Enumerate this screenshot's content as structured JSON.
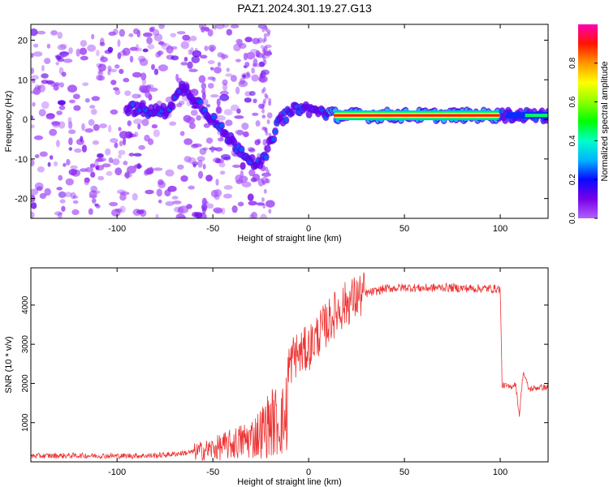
{
  "figure": {
    "title": "PAZ1.2024.301.19.27.G13"
  },
  "chart_data": [
    {
      "type": "heatmap",
      "title": "PAZ1.2024.301.19.27.G13",
      "xlabel": "Height of straight line (km)",
      "ylabel": "Frequency (Hz)",
      "xlim": [
        -145,
        125
      ],
      "ylim": [
        -25,
        24
      ],
      "xticks": [
        -100,
        -50,
        0,
        50,
        100
      ],
      "yticks": [
        -20,
        -10,
        0,
        10,
        20
      ],
      "colorbar": {
        "label": "Normalized spectral amplitude",
        "range": [
          0,
          1
        ],
        "ticks": [
          "0.0",
          "0.2",
          "0.4",
          "0.6",
          "0.8"
        ],
        "colormap": "gist_rainbow (white at 0)"
      },
      "ridge": {
        "description_points_x": [
          -95,
          -85,
          -75,
          -65,
          -55,
          -45,
          -35,
          -25,
          -15,
          -5,
          5,
          15,
          50,
          100,
          110,
          125
        ],
        "description_points_y": [
          3,
          2,
          2,
          8,
          3,
          -3,
          -8,
          -12,
          0,
          3,
          2,
          1,
          1,
          1,
          1,
          1
        ],
        "strong_segment": {
          "x_from": 10,
          "x_to": 100,
          "frequency": 1
        }
      },
      "grid": false
    },
    {
      "type": "line",
      "xlabel": "Height of straight line (km)",
      "ylabel": "SNR (10 * v/v)",
      "xlim": [
        -145,
        125
      ],
      "ylim": [
        0,
        4950
      ],
      "xticks": [
        -100,
        -50,
        0,
        50,
        100
      ],
      "yticks": [
        1000,
        2000,
        3000,
        4000
      ],
      "series": [
        {
          "color": "#ee3333",
          "x": [
            -145,
            -120,
            -100,
            -80,
            -70,
            -60,
            -50,
            -40,
            -30,
            -25,
            -20,
            -15,
            -12,
            -10,
            -8,
            -5,
            0,
            5,
            10,
            15,
            20,
            25,
            30,
            35,
            40,
            50,
            60,
            70,
            80,
            90,
            95,
            100,
            101,
            102,
            105,
            108,
            110,
            112,
            115,
            120,
            125
          ],
          "y": [
            150,
            160,
            150,
            160,
            200,
            250,
            330,
            450,
            600,
            750,
            1000,
            1050,
            1050,
            2400,
            2700,
            2750,
            2900,
            3250,
            3550,
            3850,
            4050,
            4200,
            4300,
            4350,
            4420,
            4450,
            4430,
            4450,
            4430,
            4420,
            4420,
            4410,
            1950,
            1950,
            1900,
            2000,
            1200,
            2300,
            1850,
            1900,
            1900
          ]
        }
      ],
      "grid": false
    }
  ]
}
